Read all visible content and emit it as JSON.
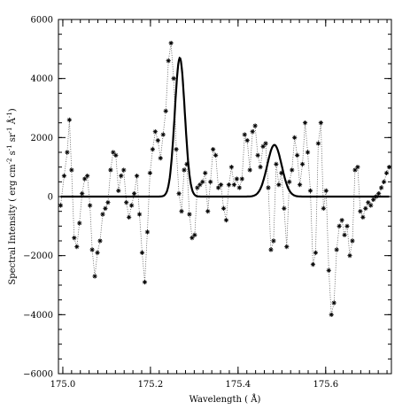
{
  "chart_data": {
    "type": "line",
    "title": "",
    "xlabel": "Wavelength ( Å)",
    "ylabel_parts": {
      "main": "Spectral Intensity ( erg cm",
      "exp1": "-2",
      "mid1": " s",
      "exp2": "-1",
      "mid2": " sr",
      "exp3": "-1",
      "mid3": " Å",
      "exp4": "-1",
      "end": ")"
    },
    "xlim": [
      174.99,
      175.75
    ],
    "ylim": [
      -6000,
      6000
    ],
    "x_ticks": [
      {
        "value": 175.0,
        "label": "175.0"
      },
      {
        "value": 175.2,
        "label": "175.2"
      },
      {
        "value": 175.4,
        "label": "175.4"
      },
      {
        "value": 175.6,
        "label": "175.6"
      }
    ],
    "y_ticks": [
      {
        "value": -6000,
        "label": "−6000"
      },
      {
        "value": -4000,
        "label": "−4000"
      },
      {
        "value": -2000,
        "label": "−2000"
      },
      {
        "value": 0,
        "label": "0"
      },
      {
        "value": 2000,
        "label": "2000"
      },
      {
        "value": 4000,
        "label": "4000"
      },
      {
        "value": 6000,
        "label": "6000"
      }
    ],
    "grid": false,
    "series": [
      {
        "style": "dotted-with-asterisks",
        "x": [
          174.995,
          175.003,
          175.01,
          175.015,
          175.02,
          175.026,
          175.032,
          175.038,
          175.044,
          175.05,
          175.056,
          175.062,
          175.067,
          175.073,
          175.079,
          175.085,
          175.091,
          175.097,
          175.103,
          175.109,
          175.115,
          175.121,
          175.127,
          175.133,
          175.139,
          175.145,
          175.151,
          175.157,
          175.163,
          175.169,
          175.175,
          175.181,
          175.187,
          175.193,
          175.199,
          175.205,
          175.211,
          175.217,
          175.223,
          175.229,
          175.235,
          175.241,
          175.247,
          175.253,
          175.259,
          175.265,
          175.271,
          175.277,
          175.283,
          175.289,
          175.295,
          175.301,
          175.307,
          175.313,
          175.319,
          175.325,
          175.331,
          175.337,
          175.343,
          175.349,
          175.355,
          175.361,
          175.367,
          175.373,
          175.379,
          175.385,
          175.391,
          175.397,
          175.403,
          175.409,
          175.415,
          175.421,
          175.427,
          175.433,
          175.439,
          175.445,
          175.451,
          175.457,
          175.463,
          175.469,
          175.475,
          175.481,
          175.487,
          175.493,
          175.499,
          175.505,
          175.511,
          175.517,
          175.523,
          175.529,
          175.535,
          175.541,
          175.547,
          175.553,
          175.559,
          175.565,
          175.571,
          175.577,
          175.583,
          175.589,
          175.595,
          175.601,
          175.607,
          175.613,
          175.619,
          175.625,
          175.631,
          175.637,
          175.643,
          175.649,
          175.655,
          175.661,
          175.667,
          175.673,
          175.679,
          175.685,
          175.691,
          175.697,
          175.703,
          175.709,
          175.715,
          175.721,
          175.727,
          175.733,
          175.739,
          175.745
        ],
        "y": [
          -300,
          700,
          1500,
          2600,
          900,
          -1400,
          -1700,
          -900,
          100,
          600,
          700,
          -300,
          -1800,
          -2700,
          -1900,
          -1500,
          -600,
          -400,
          -200,
          900,
          1500,
          1400,
          200,
          700,
          900,
          -200,
          -700,
          -300,
          100,
          700,
          -600,
          -1900,
          -2900,
          -1200,
          800,
          1600,
          2200,
          1900,
          1300,
          2100,
          2900,
          4600,
          5200,
          4000,
          1600,
          100,
          -500,
          900,
          1100,
          -600,
          -1400,
          -1300,
          300,
          400,
          500,
          800,
          -500,
          500,
          1600,
          1400,
          300,
          400,
          -400,
          -800,
          400,
          1000,
          400,
          600,
          300,
          600,
          2100,
          1900,
          900,
          2200,
          2400,
          1400,
          1000,
          1700,
          1800,
          300,
          -1800,
          -1500,
          1100,
          400,
          800,
          -400,
          -1700,
          500,
          900,
          2000,
          1400,
          400,
          1100,
          2500,
          1500,
          200,
          -2300,
          -1900,
          1800,
          2500,
          -400,
          200,
          -2500,
          -4000,
          -3600,
          -1800,
          -1000,
          -800,
          -1300,
          -1000,
          -2000,
          -1500,
          900,
          1000,
          -500,
          -700,
          -400,
          -200,
          -300,
          -100,
          0,
          100,
          300,
          500,
          800,
          1000
        ],
        "markers": "asterisk"
      },
      {
        "style": "solid-thick",
        "model": "sum-of-gaussians",
        "components": [
          {
            "amplitude": 4700,
            "center": 175.267,
            "sigma": 0.0115
          },
          {
            "amplitude": 1750,
            "center": 175.483,
            "sigma": 0.0165
          }
        ]
      }
    ]
  }
}
